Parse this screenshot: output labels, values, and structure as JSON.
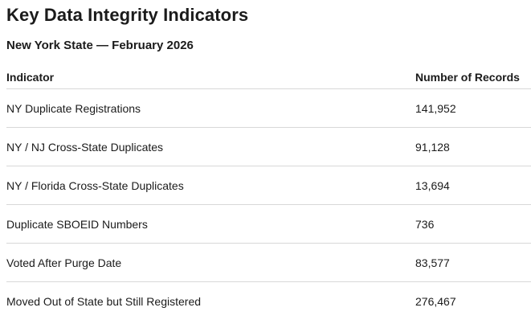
{
  "page": {
    "title": "Key Data Integrity Indicators",
    "subtitle": "New York State — February 2026"
  },
  "table": {
    "columns": [
      "Indicator",
      "Number of Records"
    ],
    "rows": [
      {
        "indicator": "NY Duplicate Registrations",
        "records": "141,952"
      },
      {
        "indicator": "NY / NJ Cross-State Duplicates",
        "records": "91,128"
      },
      {
        "indicator": "NY / Florida Cross-State Duplicates",
        "records": "13,694"
      },
      {
        "indicator": "Duplicate SBOEID Numbers",
        "records": "736"
      },
      {
        "indicator": "Voted After Purge Date",
        "records": "83,577"
      },
      {
        "indicator": "Moved Out of State but Still Registered",
        "records": "276,467"
      }
    ]
  },
  "chart_data": {
    "type": "table",
    "title": "Key Data Integrity Indicators",
    "subtitle": "New York State — February 2026",
    "columns": [
      "Indicator",
      "Number of Records"
    ],
    "rows": [
      [
        "NY Duplicate Registrations",
        141952
      ],
      [
        "NY / NJ Cross-State Duplicates",
        91128
      ],
      [
        "NY / Florida Cross-State Duplicates",
        13694
      ],
      [
        "Duplicate SBOEID Numbers",
        736
      ],
      [
        "Voted After Purge Date",
        83577
      ],
      [
        "Moved Out of State but Still Registered",
        276467
      ]
    ]
  },
  "colors": {
    "text": "#1b1b1b",
    "separator": "#d8d8d8",
    "background": "#ffffff"
  }
}
